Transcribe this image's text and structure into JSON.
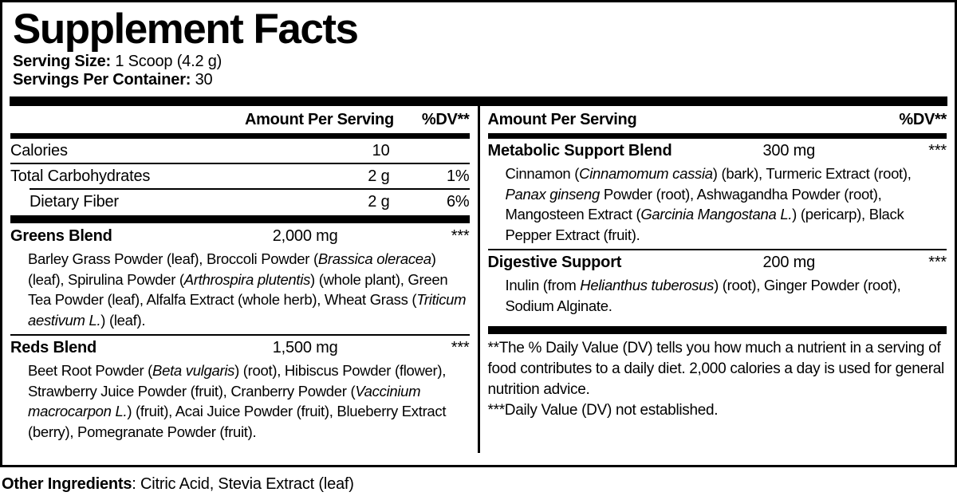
{
  "title": "Supplement Facts",
  "serving": {
    "size_label": "Serving Size:",
    "size_value": " 1 Scoop (4.2 g)",
    "container_label": "Servings Per Container:",
    "container_value": " 30"
  },
  "columns": {
    "left": {
      "header": {
        "amount": "Amount Per Serving",
        "dv": "%DV**"
      },
      "rows": [
        {
          "kind": "nutrient",
          "label": "Calories",
          "amount": "10",
          "dv": "",
          "indent": false,
          "sep_after": "full"
        },
        {
          "kind": "nutrient",
          "label": "Total Carbohydrates",
          "amount": "2 g",
          "dv": "1%",
          "indent": false,
          "sep_after": "indent"
        },
        {
          "kind": "nutrient",
          "label": "Dietary Fiber",
          "amount": "2 g",
          "dv": "6%",
          "indent": true,
          "sep_after": "none"
        },
        {
          "kind": "bar"
        },
        {
          "kind": "blend",
          "label": "Greens Blend",
          "amount": "2,000 mg",
          "dv": "***",
          "ingredients": [
            {
              "t": "Barley Grass Powder (leaf), Broccoli Powder ("
            },
            {
              "t": "Brassica oleracea",
              "i": true
            },
            {
              "t": ") (leaf), Spirulina Powder ("
            },
            {
              "t": "Arthrospira plutentis",
              "i": true
            },
            {
              "t": ") (whole plant), Green Tea Powder (leaf), Alfalfa Extract (whole herb), Wheat Grass ("
            },
            {
              "t": "Triticum aestivum L.",
              "i": true
            },
            {
              "t": ") (leaf)."
            }
          ],
          "sep_after": "full"
        },
        {
          "kind": "blend",
          "label": "Reds Blend",
          "amount": "1,500 mg",
          "dv": "***",
          "ingredients": [
            {
              "t": "Beet Root Powder ("
            },
            {
              "t": "Beta vulgaris",
              "i": true
            },
            {
              "t": ") (root), Hibiscus Powder (flower), Strawberry Juice Powder (fruit), Cranberry Powder ("
            },
            {
              "t": "Vaccinium macrocarpon L.",
              "i": true
            },
            {
              "t": ") (fruit), Acai Juice Powder (fruit), Blueberry Extract (berry), Pomegranate Powder (fruit)."
            }
          ],
          "sep_after": "none"
        }
      ]
    },
    "right": {
      "header": {
        "amount": "Amount Per Serving",
        "dv": "%DV**"
      },
      "rows": [
        {
          "kind": "blend",
          "label": "Metabolic Support Blend",
          "amount": "300 mg",
          "dv": "***",
          "ingredients": [
            {
              "t": "Cinnamon ("
            },
            {
              "t": "Cinnamomum cassia",
              "i": true
            },
            {
              "t": ") (bark), Turmeric Extract (root), "
            },
            {
              "t": "Panax ginseng",
              "i": true
            },
            {
              "t": " Powder (root), Ashwagandha Powder (root), Mangosteen Extract ("
            },
            {
              "t": "Garcinia Mangostana L.",
              "i": true
            },
            {
              "t": ") (pericarp), Black Pepper Extract (fruit)."
            }
          ],
          "sep_after": "full"
        },
        {
          "kind": "blend",
          "label": "Digestive Support",
          "amount": "200 mg",
          "dv": "***",
          "ingredients": [
            {
              "t": "Inulin (from "
            },
            {
              "t": "Helianthus tuberosus",
              "i": true
            },
            {
              "t": ") (root), Ginger Powder (root), Sodium Alginate."
            }
          ],
          "sep_after": "none"
        },
        {
          "kind": "bar",
          "style": "footbar"
        },
        {
          "kind": "footnote",
          "paras": [
            "**The % Daily Value (DV) tells you how much a nutrient in a serving of food contributes to a daily diet. 2,000 calories a day is used for general nutrition advice.",
            "***Daily Value (DV) not established."
          ]
        }
      ]
    }
  },
  "other_ingredients": {
    "label": "Other Ingredients",
    "value": ": Citric Acid, Stevia Extract (leaf)"
  }
}
